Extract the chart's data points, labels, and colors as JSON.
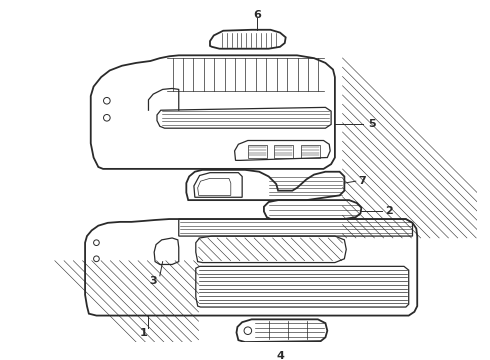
{
  "bg_color": "#ffffff",
  "line_color": "#2a2a2a",
  "lw_main": 1.3,
  "lw_med": 0.9,
  "lw_thin": 0.5,
  "figsize": [
    4.9,
    3.6
  ],
  "dpi": 100
}
